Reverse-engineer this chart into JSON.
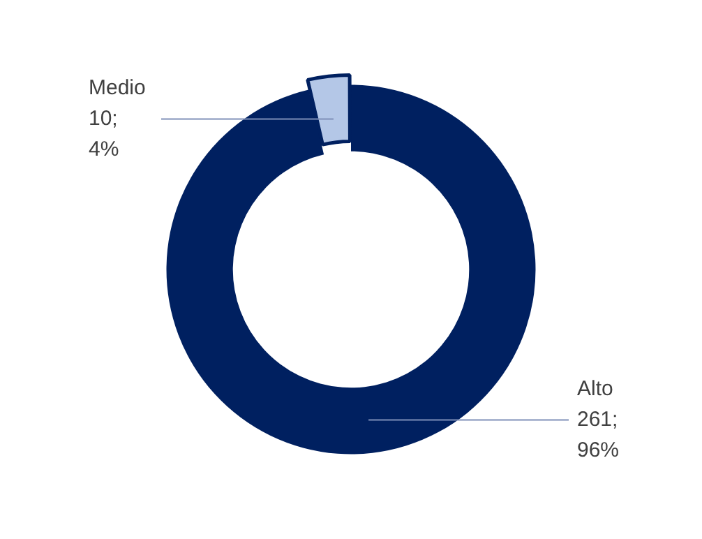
{
  "chart_data": {
    "type": "donut",
    "categories": [
      "Alto",
      "Medio"
    ],
    "values": [
      261,
      10
    ],
    "colors": [
      "#002060",
      "#b4c7e7"
    ],
    "value_labels": [
      "261; 96%",
      "10; 4%"
    ],
    "legend": false
  }
}
